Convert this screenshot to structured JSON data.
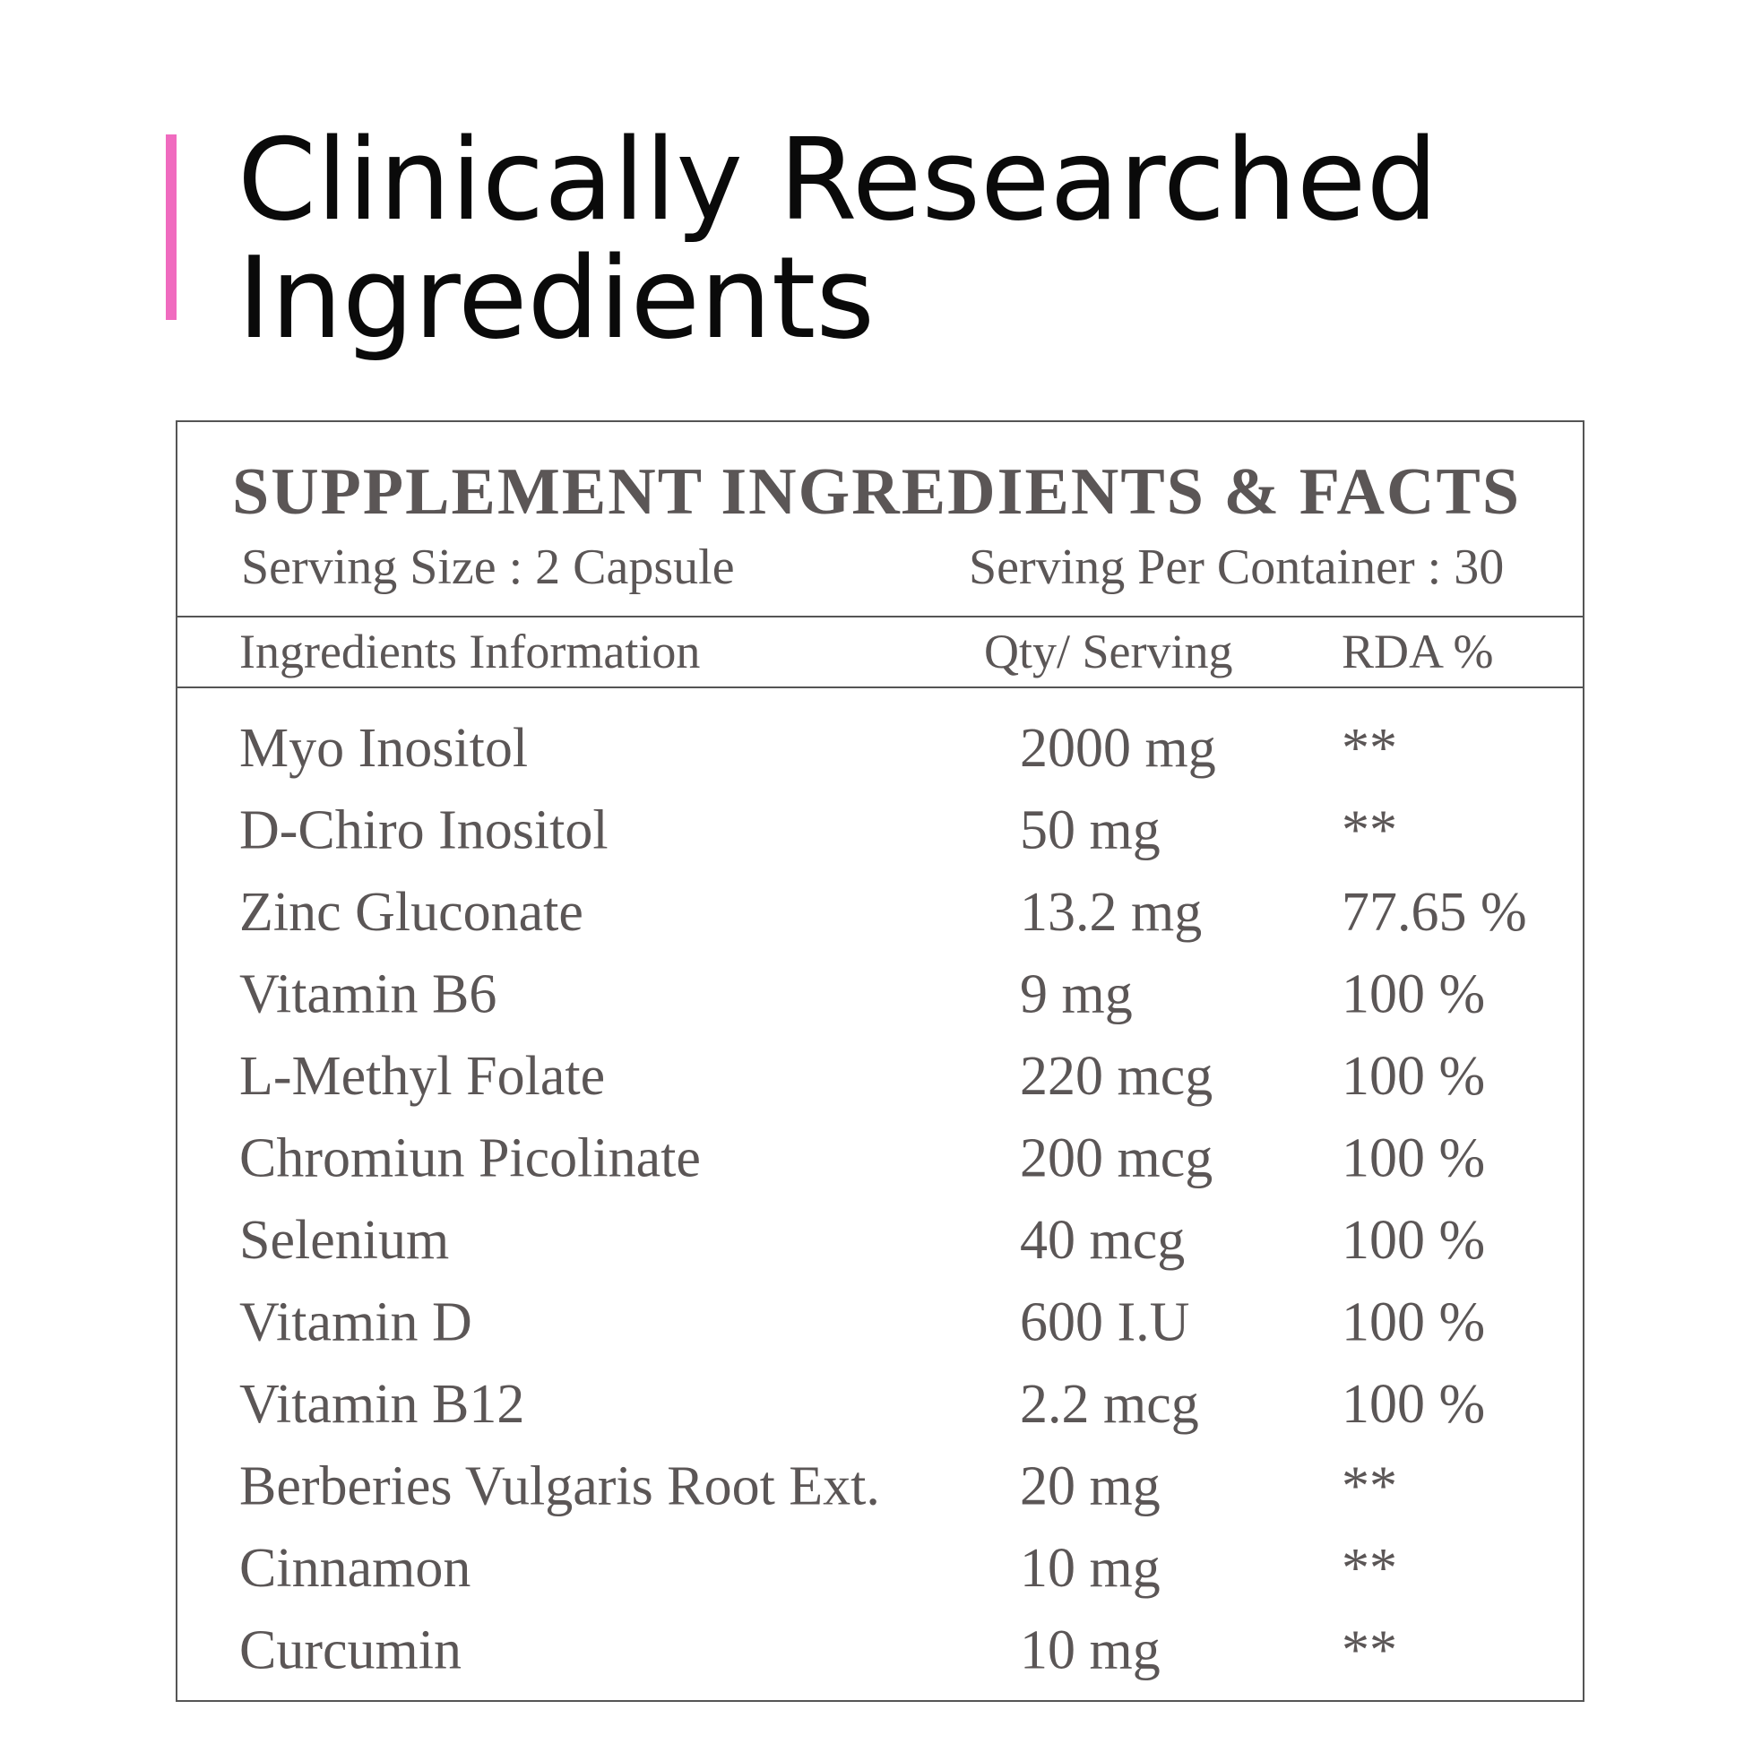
{
  "header": {
    "title_lines": [
      "Clinically Researched",
      "Ingredients"
    ]
  },
  "table": {
    "title": "SUPPLEMENT INGREDIENTS & FACTS",
    "serving_size": "Serving Size : 2 Capsule",
    "servings_per_container": "Serving Per Container : 30",
    "headers": [
      "Ingredients Information",
      "Qty/ Serving",
      "RDA %"
    ],
    "rows": [
      [
        "Myo Inositol",
        "2000 mg",
        "**"
      ],
      [
        "D-Chiro Inositol",
        "50 mg",
        "**"
      ],
      [
        "Zinc Gluconate",
        "13.2 mg",
        "77.65 %"
      ],
      [
        "Vitamin B6",
        "9 mg",
        "100 %"
      ],
      [
        "L-Methyl Folate",
        "220 mcg",
        "100 %"
      ],
      [
        "Chromiun Picolinate",
        "200 mcg",
        "100 %"
      ],
      [
        "Selenium",
        "40 mcg",
        "100 %"
      ],
      [
        "Vitamin D",
        "600 I.U",
        "100 %"
      ],
      [
        "Vitamin B12",
        "2.2 mcg",
        "100 %"
      ],
      [
        "Berberies Vulgaris Root Ext.",
        "20 mg",
        "**"
      ],
      [
        "Cinnamon",
        "10 mg",
        "**"
      ],
      [
        "Curcumin",
        "10 mg",
        "**"
      ]
    ]
  }
}
